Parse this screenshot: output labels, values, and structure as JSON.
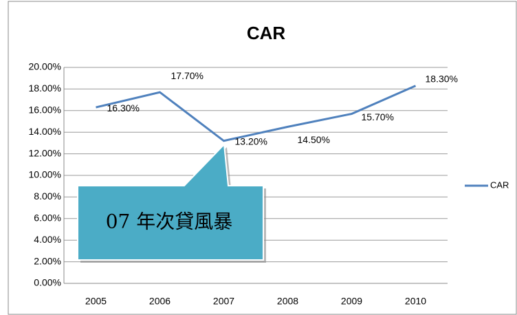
{
  "chart_data": {
    "type": "line",
    "title": "CAR",
    "categories": [
      "2005",
      "2006",
      "2007",
      "2008",
      "2009",
      "2010"
    ],
    "series": [
      {
        "name": "CAR",
        "color": "#4f81bd",
        "values": [
          16.3,
          17.7,
          13.2,
          14.5,
          15.7,
          18.3
        ],
        "value_labels": [
          "16.30%",
          "17.70%",
          "13.20%",
          "14.50%",
          "15.70%",
          "18.30%"
        ]
      }
    ],
    "ylim": [
      0,
      20
    ],
    "yticks": [
      {
        "value": 0,
        "label": "0.00%"
      },
      {
        "value": 2,
        "label": "2.00%"
      },
      {
        "value": 4,
        "label": "4.00%"
      },
      {
        "value": 6,
        "label": "6.00%"
      },
      {
        "value": 8,
        "label": "8.00%"
      },
      {
        "value": 10,
        "label": "10.00%"
      },
      {
        "value": 12,
        "label": "12.00%"
      },
      {
        "value": 14,
        "label": "14.00%"
      },
      {
        "value": 16,
        "label": "16.00%"
      },
      {
        "value": 18,
        "label": "18.00%"
      },
      {
        "value": 20,
        "label": "20.00%"
      }
    ],
    "grid": true,
    "legend": "right",
    "annotation": "07 年次貸風暴"
  }
}
